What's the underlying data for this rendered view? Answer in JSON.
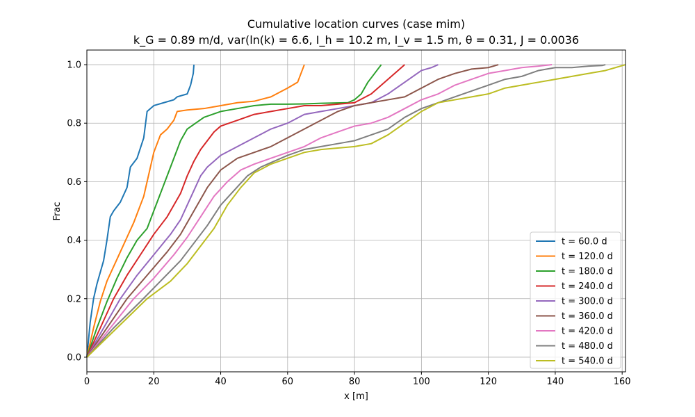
{
  "chart_data": {
    "type": "line",
    "title": "Cumulative location curves (case mim)",
    "subtitle": "k_G = 0.89 m/d, var(ln(k) = 6.6, I_h = 10.2 m, I_v = 1.5 m, θ = 0.31, J = 0.0036",
    "xlabel": "x [m]",
    "ylabel": "Frac",
    "xlim": [
      0,
      161
    ],
    "ylim": [
      -0.05,
      1.05
    ],
    "xticks": [
      0,
      20,
      40,
      60,
      80,
      100,
      120,
      140,
      160
    ],
    "yticks": [
      0.0,
      0.2,
      0.4,
      0.6,
      0.8,
      1.0
    ],
    "grid": true,
    "legend_position": "lower-right",
    "series": [
      {
        "name": "t = 60.0 d",
        "color": "#1f77b4",
        "x": [
          0,
          1,
          2,
          3,
          4,
          5,
          6,
          7,
          8,
          10,
          12,
          13,
          15,
          17,
          18,
          20,
          23,
          26,
          27,
          30,
          31,
          31.8,
          32
        ],
        "y": [
          0,
          0.12,
          0.2,
          0.25,
          0.29,
          0.33,
          0.4,
          0.48,
          0.5,
          0.53,
          0.58,
          0.65,
          0.68,
          0.75,
          0.84,
          0.86,
          0.87,
          0.88,
          0.89,
          0.9,
          0.93,
          0.97,
          1.0
        ]
      },
      {
        "name": "t = 120.0 d",
        "color": "#ff7f0e",
        "x": [
          0,
          2,
          4,
          6,
          8,
          10,
          12,
          14,
          16,
          17,
          18,
          20,
          22,
          24,
          26,
          27,
          30,
          35,
          40,
          45,
          50,
          55,
          60,
          63,
          64,
          65
        ],
        "y": [
          0,
          0.1,
          0.19,
          0.26,
          0.31,
          0.36,
          0.41,
          0.46,
          0.52,
          0.55,
          0.6,
          0.7,
          0.76,
          0.78,
          0.81,
          0.84,
          0.845,
          0.85,
          0.86,
          0.87,
          0.875,
          0.89,
          0.92,
          0.94,
          0.97,
          1.0
        ]
      },
      {
        "name": "t = 180.0 d",
        "color": "#2ca02c",
        "x": [
          0,
          3,
          6,
          9,
          12,
          15,
          18,
          20,
          22,
          24,
          26,
          28,
          30,
          35,
          40,
          45,
          50,
          55,
          60,
          65,
          70,
          78,
          80,
          82,
          84,
          86,
          88
        ],
        "y": [
          0,
          0.1,
          0.19,
          0.27,
          0.34,
          0.4,
          0.44,
          0.5,
          0.56,
          0.62,
          0.68,
          0.74,
          0.78,
          0.82,
          0.84,
          0.85,
          0.86,
          0.865,
          0.865,
          0.866,
          0.868,
          0.87,
          0.88,
          0.9,
          0.94,
          0.97,
          1.0
        ]
      },
      {
        "name": "t = 240.0 d",
        "color": "#d62728",
        "x": [
          0,
          4,
          8,
          12,
          16,
          20,
          24,
          28,
          30,
          32,
          34,
          36,
          38,
          40,
          45,
          50,
          55,
          60,
          65,
          70,
          75,
          80,
          85,
          90,
          93,
          95
        ],
        "y": [
          0,
          0.1,
          0.2,
          0.28,
          0.35,
          0.42,
          0.48,
          0.56,
          0.62,
          0.67,
          0.71,
          0.74,
          0.77,
          0.79,
          0.81,
          0.83,
          0.84,
          0.85,
          0.86,
          0.86,
          0.865,
          0.87,
          0.9,
          0.95,
          0.98,
          1.0
        ]
      },
      {
        "name": "t = 300.0 d",
        "color": "#9467bd",
        "x": [
          0,
          5,
          10,
          15,
          20,
          25,
          28,
          30,
          32,
          34,
          36,
          38,
          40,
          45,
          50,
          55,
          60,
          65,
          70,
          75,
          80,
          85,
          90,
          95,
          100,
          103,
          105
        ],
        "y": [
          0,
          0.1,
          0.2,
          0.28,
          0.35,
          0.42,
          0.47,
          0.52,
          0.57,
          0.62,
          0.65,
          0.67,
          0.69,
          0.72,
          0.75,
          0.78,
          0.8,
          0.83,
          0.84,
          0.85,
          0.86,
          0.87,
          0.9,
          0.94,
          0.98,
          0.99,
          1.0
        ]
      },
      {
        "name": "t = 360.0 d",
        "color": "#8c564b",
        "x": [
          0,
          6,
          12,
          18,
          24,
          28,
          32,
          36,
          40,
          45,
          50,
          55,
          60,
          65,
          70,
          75,
          80,
          85,
          90,
          95,
          100,
          105,
          110,
          115,
          120,
          123
        ],
        "y": [
          0,
          0.1,
          0.2,
          0.28,
          0.36,
          0.42,
          0.5,
          0.58,
          0.64,
          0.68,
          0.7,
          0.72,
          0.75,
          0.78,
          0.81,
          0.84,
          0.86,
          0.87,
          0.88,
          0.89,
          0.92,
          0.95,
          0.97,
          0.985,
          0.99,
          1.0
        ]
      },
      {
        "name": "t = 420.0 d",
        "color": "#e377c2",
        "x": [
          0,
          7,
          14,
          20,
          26,
          30,
          34,
          38,
          42,
          46,
          50,
          55,
          60,
          65,
          70,
          75,
          80,
          85,
          90,
          95,
          100,
          105,
          110,
          115,
          120,
          125,
          130,
          135,
          139
        ],
        "y": [
          0,
          0.1,
          0.2,
          0.27,
          0.35,
          0.41,
          0.48,
          0.55,
          0.6,
          0.64,
          0.66,
          0.68,
          0.7,
          0.72,
          0.75,
          0.77,
          0.79,
          0.8,
          0.82,
          0.85,
          0.88,
          0.9,
          0.93,
          0.95,
          0.97,
          0.98,
          0.99,
          0.995,
          1.0
        ]
      },
      {
        "name": "t = 480.0 d",
        "color": "#7f7f7f",
        "x": [
          0,
          8,
          16,
          22,
          28,
          32,
          36,
          40,
          44,
          48,
          52,
          56,
          60,
          65,
          70,
          75,
          80,
          85,
          90,
          95,
          100,
          105,
          110,
          115,
          120,
          125,
          130,
          135,
          140,
          145,
          150,
          154,
          155
        ],
        "y": [
          0,
          0.1,
          0.19,
          0.26,
          0.33,
          0.39,
          0.45,
          0.52,
          0.57,
          0.62,
          0.65,
          0.67,
          0.69,
          0.71,
          0.72,
          0.73,
          0.74,
          0.76,
          0.78,
          0.82,
          0.85,
          0.87,
          0.89,
          0.91,
          0.93,
          0.95,
          0.96,
          0.98,
          0.99,
          0.99,
          0.995,
          0.997,
          1.0
        ]
      },
      {
        "name": "t = 540.0 d",
        "color": "#bcbd22",
        "x": [
          0,
          9,
          18,
          25,
          30,
          34,
          38,
          42,
          46,
          50,
          55,
          60,
          65,
          70,
          75,
          80,
          85,
          90,
          95,
          100,
          105,
          110,
          115,
          120,
          125,
          130,
          135,
          140,
          145,
          150,
          155,
          158,
          161
        ],
        "y": [
          0,
          0.1,
          0.2,
          0.26,
          0.32,
          0.38,
          0.44,
          0.52,
          0.58,
          0.63,
          0.66,
          0.68,
          0.7,
          0.71,
          0.715,
          0.72,
          0.73,
          0.76,
          0.8,
          0.84,
          0.87,
          0.88,
          0.89,
          0.9,
          0.92,
          0.93,
          0.94,
          0.95,
          0.96,
          0.97,
          0.98,
          0.99,
          1.0
        ]
      }
    ]
  }
}
